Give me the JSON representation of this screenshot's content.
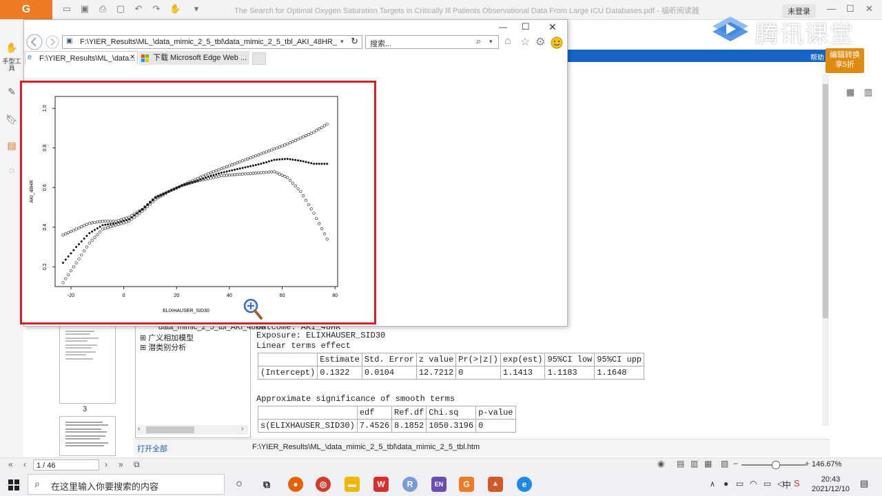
{
  "app": {
    "logo_glyph": "G",
    "document_title": "The Search for Optimal Oxygen Saturation Targets in Critically Ill Patients Observational Data From Large ICU Databases.pdf - 福昕阅读器",
    "login_label": "未登录",
    "help_label": "帮助",
    "promo_line1": "编辑转换",
    "promo_line2": "享5折",
    "left_hand_tool": "手型工具",
    "watermark_text": "腾讯课堂"
  },
  "ie": {
    "address": "F:\\YIER_Results\\ML_\\data_mimic_2_5_tbl\\data_mimic_2_5_tbl_AKI_48HR_ELIXI",
    "search_placeholder": "搜索...",
    "tabs": [
      {
        "label": "F:\\YIER_Results\\ML_\\data..."
      },
      {
        "label": "下载 Microsoft Edge Web ..."
      }
    ]
  },
  "sidebar_tree": {
    "items": [
      {
        "label": "data_mimic_2_5_tbl_AKI_48HR"
      },
      {
        "label": "广义相加模型"
      },
      {
        "label": "潜类别分析"
      }
    ],
    "open_all": "打开全部"
  },
  "thumbnails": {
    "page_label": "3"
  },
  "content": {
    "outcome_line": "Outcome: AKI_48HR",
    "exposure_line": "Exposure: ELIXHAUSER_SID30",
    "linear_heading": "Linear terms effect",
    "linear_table": {
      "headers": [
        "",
        "Estimate",
        "Std. Error",
        "z value",
        "Pr(>|z|)",
        "exp(est)",
        "95%CI low",
        "95%CI upp"
      ],
      "rows": [
        [
          "(Intercept)",
          "0.1322",
          "0.0104",
          "12.7212",
          "0",
          "1.1413",
          "1.1183",
          "1.1648"
        ]
      ]
    },
    "smooth_heading": "Approximate significance of smooth terms",
    "smooth_table": {
      "headers": [
        "",
        "edf",
        "Ref.df",
        "Chi.sq",
        "p-value"
      ],
      "rows": [
        [
          "s(ELIXHAUSER_SID30)",
          "7.4526",
          "8.1852",
          "1050.3196",
          "0"
        ]
      ]
    }
  },
  "status": {
    "file_path": "F:\\YIER_Results\\ML_\\data_mimic_2_5_tbl\\data_mimic_2_5_tbl.htm",
    "page_box": "1 / 46",
    "zoom": "146.67%"
  },
  "taskbar": {
    "search_placeholder": "在这里输入你要搜索的内容",
    "time": "20:43",
    "date": "2021/12/10",
    "ime": "中",
    "icons": [
      "cortana-icon",
      "task-view-icon",
      "firefox-icon",
      "chrome-icon",
      "file-explorer-icon",
      "wps-icon",
      "r-icon",
      "en-icon",
      "foxit-icon",
      "matlab-icon",
      "ie-icon"
    ]
  },
  "chart_data": {
    "type": "scatter",
    "xlabel": "ELIXHAUSER_SID30",
    "ylabel": "AKI_48HR",
    "xlim": [
      -26,
      81
    ],
    "ylim": [
      0.1,
      1.06
    ],
    "xticks": [
      "-20",
      "0",
      "20",
      "40",
      "60",
      "80"
    ],
    "yticks": [
      "0.2",
      "0.4",
      "0.6",
      "0.8",
      "1.0"
    ],
    "xtick_values": [
      -20,
      0,
      20,
      40,
      60,
      80
    ],
    "ytick_values": [
      0.2,
      0.4,
      0.6,
      0.8,
      1.0
    ],
    "series": [
      {
        "style": "filled",
        "x": [
          -23,
          -18,
          -13,
          -8,
          -3,
          2,
          7,
          12,
          17,
          22,
          27,
          32,
          37,
          42,
          47,
          52,
          57,
          62,
          67,
          72,
          77
        ],
        "y": [
          0.22,
          0.3,
          0.37,
          0.41,
          0.42,
          0.44,
          0.49,
          0.55,
          0.58,
          0.61,
          0.63,
          0.655,
          0.675,
          0.69,
          0.705,
          0.72,
          0.74,
          0.745,
          0.735,
          0.72,
          0.72
        ]
      },
      {
        "style": "open",
        "x": [
          -23,
          -18,
          -13,
          -8,
          -3,
          2,
          7,
          12,
          17,
          22,
          27,
          32,
          37,
          42,
          47,
          52,
          57,
          62,
          67,
          72,
          77
        ],
        "y": [
          0.36,
          0.39,
          0.42,
          0.43,
          0.43,
          0.45,
          0.49,
          0.55,
          0.58,
          0.61,
          0.64,
          0.67,
          0.695,
          0.72,
          0.745,
          0.77,
          0.795,
          0.82,
          0.85,
          0.88,
          0.92
        ]
      },
      {
        "style": "open",
        "x": [
          -23,
          -18,
          -13,
          -8,
          -3,
          2,
          7,
          12,
          17,
          22,
          27,
          32,
          37,
          42,
          47,
          52,
          57,
          62,
          67,
          72,
          77
        ],
        "y": [
          0.12,
          0.22,
          0.32,
          0.39,
          0.41,
          0.43,
          0.48,
          0.54,
          0.58,
          0.61,
          0.63,
          0.645,
          0.66,
          0.665,
          0.67,
          0.675,
          0.68,
          0.65,
          0.58,
          0.47,
          0.34
        ]
      }
    ]
  }
}
